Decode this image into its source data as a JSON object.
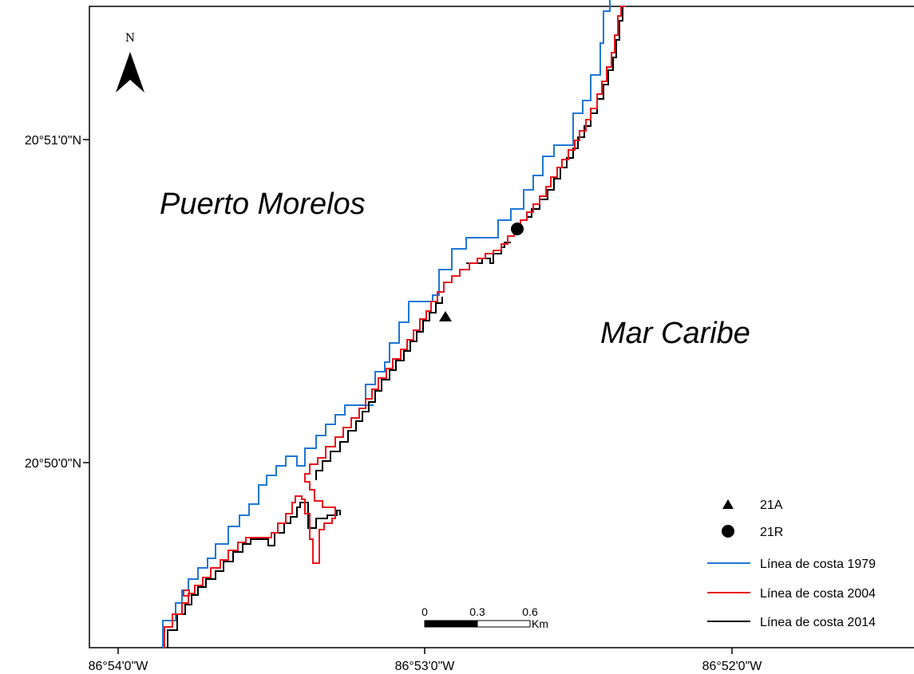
{
  "map": {
    "north_label": "N",
    "lat_labels": [
      "20°51'0\"N",
      "20°50'0\"N"
    ],
    "lon_labels": [
      "86°54'0\"W",
      "86°53'0\"W",
      "86°52'0\"W"
    ],
    "places": {
      "land": "Puerto Morelos",
      "sea": "Mar Caribe"
    },
    "colors": {
      "coast_1979": "#1f77d4",
      "coast_2004": "#e8141c",
      "coast_2014": "#000000"
    },
    "legend": {
      "site_a": "21A",
      "site_r": "21R",
      "coast_1979": "Línea de costa 1979",
      "coast_2004": "Línea de costa 2004",
      "coast_2014": "Línea de costa 2014"
    },
    "scale_bar": {
      "ticks": [
        "0",
        "0.3",
        "0.6"
      ],
      "unit": "Km"
    }
  }
}
